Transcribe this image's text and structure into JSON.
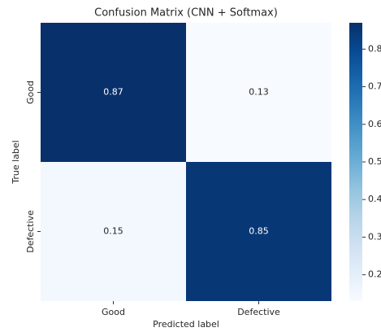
{
  "chart_data": {
    "type": "heatmap",
    "title": "Confusion Matrix (CNN + Softmax)",
    "x_label": "Predicted label",
    "y_label": "True label",
    "x_categories": [
      "Good",
      "Defective"
    ],
    "y_categories": [
      "Good",
      "Defective"
    ],
    "values": [
      [
        0.87,
        0.13
      ],
      [
        0.15,
        0.85
      ]
    ],
    "colormap": "Blues",
    "clim": [
      0.13,
      0.87
    ],
    "colorbar_ticks": [
      0.2,
      0.3,
      0.4,
      0.5,
      0.6,
      0.7,
      0.8
    ]
  }
}
